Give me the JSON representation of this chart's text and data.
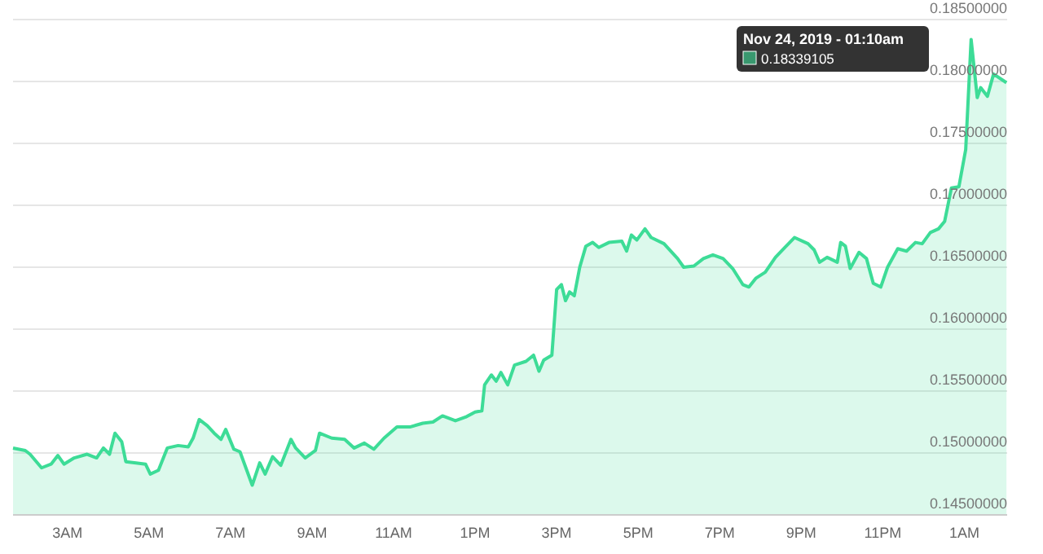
{
  "chart_data": {
    "type": "area",
    "xlim": [
      "2019-11-23T01:40",
      "2019-11-24T02:03"
    ],
    "ylim": [
      0.145,
      0.185
    ],
    "xticks": [
      {
        "value": "2019-11-23T03:00",
        "label": "3AM"
      },
      {
        "value": "2019-11-23T05:00",
        "label": "5AM"
      },
      {
        "value": "2019-11-23T07:00",
        "label": "7AM"
      },
      {
        "value": "2019-11-23T09:00",
        "label": "9AM"
      },
      {
        "value": "2019-11-23T11:00",
        "label": "11AM"
      },
      {
        "value": "2019-11-23T13:00",
        "label": "1PM"
      },
      {
        "value": "2019-11-23T15:00",
        "label": "3PM"
      },
      {
        "value": "2019-11-23T17:00",
        "label": "5PM"
      },
      {
        "value": "2019-11-23T19:00",
        "label": "7PM"
      },
      {
        "value": "2019-11-23T21:00",
        "label": "9PM"
      },
      {
        "value": "2019-11-23T23:00",
        "label": "11PM"
      },
      {
        "value": "2019-11-24T01:00",
        "label": "1AM"
      }
    ],
    "yticks": [
      {
        "value": 0.145,
        "label": "0.14500000"
      },
      {
        "value": 0.15,
        "label": "0.15000000"
      },
      {
        "value": 0.155,
        "label": "0.15500000"
      },
      {
        "value": 0.16,
        "label": "0.16000000"
      },
      {
        "value": 0.165,
        "label": "0.16500000"
      },
      {
        "value": 0.17,
        "label": "0.17000000"
      },
      {
        "value": 0.175,
        "label": "0.17500000"
      },
      {
        "value": 0.18,
        "label": "0.18000000"
      },
      {
        "value": 0.185,
        "label": "0.18500000"
      }
    ],
    "grid": "y",
    "x": [
      "2019-11-23T01:40",
      "2019-11-23T01:58",
      "2019-11-23T02:05",
      "2019-11-23T02:22",
      "2019-11-23T02:36",
      "2019-11-23T02:46",
      "2019-11-23T02:55",
      "2019-11-23T03:10",
      "2019-11-23T03:29",
      "2019-11-23T03:43",
      "2019-11-23T03:53",
      "2019-11-23T04:02",
      "2019-11-23T04:10",
      "2019-11-23T04:20",
      "2019-11-23T04:26",
      "2019-11-23T04:41",
      "2019-11-23T04:55",
      "2019-11-23T05:02",
      "2019-11-23T05:14",
      "2019-11-23T05:27",
      "2019-11-23T05:43",
      "2019-11-23T05:58",
      "2019-11-23T06:05",
      "2019-11-23T06:14",
      "2019-11-23T06:26",
      "2019-11-23T06:36",
      "2019-11-23T06:46",
      "2019-11-23T06:53",
      "2019-11-23T07:05",
      "2019-11-23T07:14",
      "2019-11-23T07:32",
      "2019-11-23T07:43",
      "2019-11-23T07:51",
      "2019-11-23T08:02",
      "2019-11-23T08:14",
      "2019-11-23T08:29",
      "2019-11-23T08:36",
      "2019-11-23T08:50",
      "2019-11-23T09:05",
      "2019-11-23T09:11",
      "2019-11-23T09:29",
      "2019-11-23T09:48",
      "2019-11-23T10:02",
      "2019-11-23T10:17",
      "2019-11-23T10:31",
      "2019-11-23T10:46",
      "2019-11-23T11:05",
      "2019-11-23T11:24",
      "2019-11-23T11:43",
      "2019-11-23T11:58",
      "2019-11-23T12:12",
      "2019-11-23T12:31",
      "2019-11-23T12:46",
      "2019-11-23T13:00",
      "2019-11-23T13:10",
      "2019-11-23T13:14",
      "2019-11-23T13:24",
      "2019-11-23T13:31",
      "2019-11-23T13:38",
      "2019-11-23T13:48",
      "2019-11-23T13:58",
      "2019-11-23T14:15",
      "2019-11-23T14:26",
      "2019-11-23T14:34",
      "2019-11-23T14:41",
      "2019-11-23T14:53",
      "2019-11-23T15:00",
      "2019-11-23T15:07",
      "2019-11-23T15:13",
      "2019-11-23T15:19",
      "2019-11-23T15:26",
      "2019-11-23T15:34",
      "2019-11-23T15:43",
      "2019-11-23T15:53",
      "2019-11-23T16:02",
      "2019-11-23T16:17",
      "2019-11-23T16:36",
      "2019-11-23T16:43",
      "2019-11-23T16:50",
      "2019-11-23T16:58",
      "2019-11-23T17:10",
      "2019-11-23T17:19",
      "2019-11-23T17:38",
      "2019-11-23T17:58",
      "2019-11-23T18:07",
      "2019-11-23T18:22",
      "2019-11-23T18:36",
      "2019-11-23T18:50",
      "2019-11-23T19:05",
      "2019-11-23T19:19",
      "2019-11-23T19:34",
      "2019-11-23T19:43",
      "2019-11-23T19:53",
      "2019-11-23T20:07",
      "2019-11-23T20:22",
      "2019-11-23T20:36",
      "2019-11-23T20:50",
      "2019-11-23T21:10",
      "2019-11-23T21:19",
      "2019-11-23T21:27",
      "2019-11-23T21:38",
      "2019-11-23T21:53",
      "2019-11-23T21:58",
      "2019-11-23T22:05",
      "2019-11-23T22:12",
      "2019-11-23T22:25",
      "2019-11-23T22:36",
      "2019-11-23T22:46",
      "2019-11-23T22:57",
      "2019-11-23T23:07",
      "2019-11-23T23:22",
      "2019-11-23T23:35",
      "2019-11-23T23:48",
      "2019-11-23T23:58",
      "2019-11-24T00:10",
      "2019-11-24T00:22",
      "2019-11-24T00:31",
      "2019-11-24T00:41",
      "2019-11-24T00:52",
      "2019-11-24T01:02",
      "2019-11-24T01:10",
      "2019-11-24T01:19",
      "2019-11-24T01:24",
      "2019-11-24T01:34",
      "2019-11-24T01:43",
      "2019-11-24T02:02"
    ],
    "series": [
      {
        "color": "#3ddc97",
        "values": [
          0.1504,
          0.1502,
          0.1499,
          0.1488,
          0.1491,
          0.1498,
          0.1491,
          0.1496,
          0.1499,
          0.1496,
          0.1504,
          0.1499,
          0.1516,
          0.1509,
          0.1493,
          0.1492,
          0.1491,
          0.1483,
          0.1486,
          0.1504,
          0.1506,
          0.1505,
          0.1512,
          0.1527,
          0.1522,
          0.1516,
          0.1511,
          0.1519,
          0.1503,
          0.1501,
          0.1474,
          0.1492,
          0.1483,
          0.1497,
          0.149,
          0.1511,
          0.1504,
          0.1496,
          0.1502,
          0.1516,
          0.1512,
          0.1511,
          0.1504,
          0.1508,
          0.1503,
          0.1512,
          0.1521,
          0.1521,
          0.1524,
          0.1525,
          0.153,
          0.1526,
          0.1529,
          0.1533,
          0.1534,
          0.1555,
          0.1563,
          0.1558,
          0.1565,
          0.1555,
          0.1571,
          0.1574,
          0.1579,
          0.1566,
          0.1575,
          0.1579,
          0.1632,
          0.1636,
          0.1623,
          0.163,
          0.1627,
          0.165,
          0.1667,
          0.167,
          0.1666,
          0.167,
          0.1671,
          0.1663,
          0.1676,
          0.1672,
          0.1681,
          0.1674,
          0.1669,
          0.1657,
          0.165,
          0.1651,
          0.1657,
          0.166,
          0.1657,
          0.1649,
          0.1636,
          0.1634,
          0.1641,
          0.1646,
          0.1658,
          0.1666,
          0.1674,
          0.1669,
          0.1664,
          0.1654,
          0.1658,
          0.1654,
          0.167,
          0.1667,
          0.1649,
          0.1662,
          0.1657,
          0.1637,
          0.1634,
          0.165,
          0.1665,
          0.1663,
          0.167,
          0.1669,
          0.1678,
          0.1681,
          0.1687,
          0.1714,
          0.1715,
          0.1745,
          0.18339105,
          0.1787,
          0.1795,
          0.1788,
          0.1806,
          0.1799
        ]
      }
    ],
    "annotations": [
      "Nov 24, 2019 - 01:10am",
      "0.18339105"
    ]
  }
}
